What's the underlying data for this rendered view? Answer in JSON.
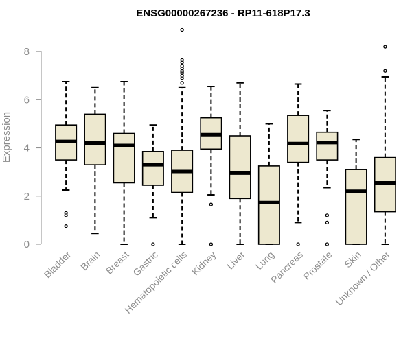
{
  "chart_data": {
    "type": "box",
    "title": "ENSG00000267236 - RP11-618P17.3",
    "xlabel": "",
    "ylabel": "Expression",
    "ylim": [
      0,
      9
    ],
    "yticks": [
      0,
      2,
      4,
      6,
      8
    ],
    "grid": false,
    "colors": {
      "box_fill": "#ede8cf",
      "box_stroke": "#000000",
      "axis": "#8c8c8c",
      "label": "#8c8c8c",
      "title": "#000000"
    },
    "categories": [
      "Bladder",
      "Brain",
      "Breast",
      "Gastric",
      "Hematopoietic cells",
      "Kidney",
      "Liver",
      "Lung",
      "Pancreas",
      "Prostate",
      "Skin",
      "Unknown / Other"
    ],
    "boxes": [
      {
        "name": "Bladder",
        "q1": 3.5,
        "median": 4.27,
        "q3": 4.95,
        "whisker_low": 2.25,
        "whisker_high": 6.75,
        "outliers": [
          1.3,
          1.2,
          0.75
        ]
      },
      {
        "name": "Brain",
        "q1": 3.3,
        "median": 4.2,
        "q3": 5.4,
        "whisker_low": 0.45,
        "whisker_high": 6.5,
        "outliers": []
      },
      {
        "name": "Breast",
        "q1": 2.55,
        "median": 4.1,
        "q3": 4.6,
        "whisker_low": 0.0,
        "whisker_high": 6.75,
        "outliers": []
      },
      {
        "name": "Gastric",
        "q1": 2.45,
        "median": 3.3,
        "q3": 3.85,
        "whisker_low": 1.1,
        "whisker_high": 4.95,
        "outliers": [
          0.0
        ]
      },
      {
        "name": "Hematopoietic cells",
        "q1": 2.15,
        "median": 3.02,
        "q3": 3.9,
        "whisker_low": 0.0,
        "whisker_high": 6.5,
        "outliers": [
          6.7,
          6.9,
          7.0,
          7.1,
          7.15,
          7.2,
          7.3,
          7.4,
          7.55,
          7.65,
          8.9
        ]
      },
      {
        "name": "Kidney",
        "q1": 3.95,
        "median": 4.55,
        "q3": 5.25,
        "whisker_low": 2.05,
        "whisker_high": 6.55,
        "outliers": [
          1.65,
          0.0
        ]
      },
      {
        "name": "Liver",
        "q1": 1.9,
        "median": 2.95,
        "q3": 4.5,
        "whisker_low": 0.0,
        "whisker_high": 6.7,
        "outliers": []
      },
      {
        "name": "Lung",
        "q1": 0.0,
        "median": 1.73,
        "q3": 3.25,
        "whisker_low": 0.0,
        "whisker_high": 5.0,
        "outliers": []
      },
      {
        "name": "Pancreas",
        "q1": 3.4,
        "median": 4.18,
        "q3": 5.35,
        "whisker_low": 0.9,
        "whisker_high": 6.65,
        "outliers": [
          0.0
        ]
      },
      {
        "name": "Prostate",
        "q1": 3.5,
        "median": 4.22,
        "q3": 4.65,
        "whisker_low": 2.35,
        "whisker_high": 5.55,
        "outliers": [
          1.2,
          0.9,
          0.0
        ]
      },
      {
        "name": "Skin",
        "q1": 0.0,
        "median": 2.2,
        "q3": 3.1,
        "whisker_low": 0.0,
        "whisker_high": 4.35,
        "outliers": []
      },
      {
        "name": "Unknown / Other",
        "q1": 1.35,
        "median": 2.55,
        "q3": 3.6,
        "whisker_low": 0.0,
        "whisker_high": 6.95,
        "outliers": [
          7.2,
          8.2
        ]
      }
    ]
  }
}
